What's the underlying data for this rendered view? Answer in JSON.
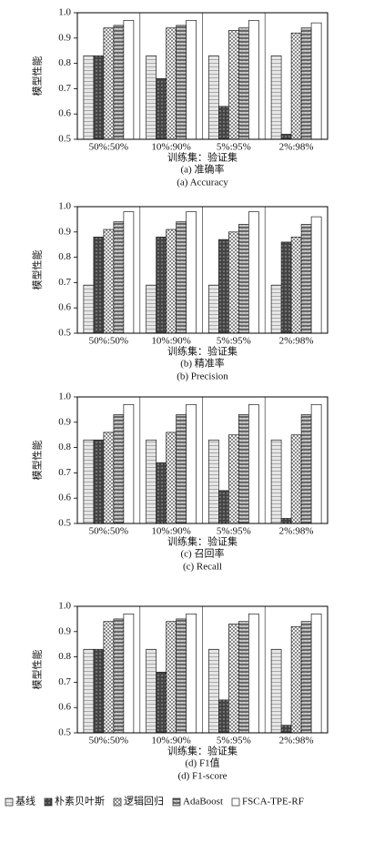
{
  "chart_data": [
    {
      "type": "bar",
      "caption": "(a) 准确率",
      "caption_en": "(a) Accuracy",
      "xlabel": "训练集：验证集",
      "ylabel": "模型性能",
      "categories": [
        "50%:50%",
        "10%:90%",
        "5%:95%",
        "2%:98%"
      ],
      "ylim": [
        0.5,
        1.0
      ],
      "yticks": [
        0.5,
        0.6,
        0.7,
        0.8,
        0.9,
        {
          "value": 1.0,
          "label": "1.0"
        }
      ],
      "series": [
        {
          "name": "基线",
          "color": "#e6e6e6",
          "values": [
            0.83,
            0.83,
            0.83,
            0.83
          ]
        },
        {
          "name": "朴素贝叶斯",
          "color": "#444444",
          "values": [
            0.83,
            0.74,
            0.63,
            0.52
          ]
        },
        {
          "name": "逻辑回归",
          "color": "#f4f4f4",
          "values": [
            0.94,
            0.94,
            0.93,
            0.92
          ]
        },
        {
          "name": "AdaBoost",
          "color": "#d8d8d8",
          "values": [
            0.95,
            0.95,
            0.94,
            0.94
          ]
        },
        {
          "name": "FSCA-TPE-RF",
          "color": "#ffffff",
          "values": [
            0.97,
            0.97,
            0.97,
            0.96
          ]
        }
      ]
    },
    {
      "type": "bar",
      "caption": "(b) 精准率",
      "caption_en": "(b) Precision",
      "xlabel": "训练集：验证集",
      "ylabel": "模型性能",
      "categories": [
        "50%:50%",
        "10%:90%",
        "5%:95%",
        "2%:98%"
      ],
      "ylim": [
        0.5,
        1.0
      ],
      "yticks": [
        0.5,
        0.6,
        0.7,
        0.8,
        0.9,
        {
          "value": 1.0,
          "label": "1.0"
        }
      ],
      "series": [
        {
          "name": "基线",
          "color": "#e6e6e6",
          "values": [
            0.69,
            0.69,
            0.69,
            0.69
          ]
        },
        {
          "name": "朴素贝叶斯",
          "color": "#444444",
          "values": [
            0.88,
            0.88,
            0.87,
            0.86
          ]
        },
        {
          "name": "逻辑回归",
          "color": "#f4f4f4",
          "values": [
            0.91,
            0.91,
            0.9,
            0.88
          ]
        },
        {
          "name": "AdaBoost",
          "color": "#d8d8d8",
          "values": [
            0.94,
            0.94,
            0.93,
            0.93
          ]
        },
        {
          "name": "FSCA-TPE-RF",
          "color": "#ffffff",
          "values": [
            0.98,
            0.98,
            0.98,
            0.96
          ]
        }
      ]
    },
    {
      "type": "bar",
      "caption": "(c) 召回率",
      "caption_en": "(c) Recall",
      "xlabel": "训练集：验证集",
      "ylabel": "模型性能",
      "categories": [
        "50%:50%",
        "10%:90%",
        "5%:95%",
        "2%:98%"
      ],
      "ylim": [
        0.5,
        1.0
      ],
      "yticks": [
        0.5,
        0.6,
        0.7,
        0.8,
        0.9,
        {
          "value": 1.0,
          "label": "1.0"
        }
      ],
      "series": [
        {
          "name": "基线",
          "color": "#e6e6e6",
          "values": [
            0.83,
            0.83,
            0.83,
            0.83
          ]
        },
        {
          "name": "朴素贝叶斯",
          "color": "#444444",
          "values": [
            0.83,
            0.74,
            0.63,
            0.52
          ]
        },
        {
          "name": "逻辑回归",
          "color": "#f4f4f4",
          "values": [
            0.86,
            0.86,
            0.85,
            0.85
          ]
        },
        {
          "name": "AdaBoost",
          "color": "#d8d8d8",
          "values": [
            0.93,
            0.93,
            0.93,
            0.93
          ]
        },
        {
          "name": "FSCA-TPE-RF",
          "color": "#ffffff",
          "values": [
            0.97,
            0.97,
            0.97,
            0.97
          ]
        }
      ]
    },
    {
      "type": "bar",
      "caption": "(d) F1值",
      "caption_en": "(d) F1-score",
      "xlabel": "训练集：验证集",
      "ylabel": "模型性能",
      "categories": [
        "50%:50%",
        "10%:90%",
        "5%:95%",
        "2%:98%"
      ],
      "ylim": [
        0.5,
        1.0
      ],
      "yticks": [
        0.5,
        0.6,
        0.7,
        0.8,
        0.9,
        {
          "value": 1.0,
          "label": "1.0"
        }
      ],
      "series": [
        {
          "name": "基线",
          "color": "#e6e6e6",
          "values": [
            0.83,
            0.83,
            0.83,
            0.83
          ]
        },
        {
          "name": "朴素贝叶斯",
          "color": "#444444",
          "values": [
            0.83,
            0.74,
            0.63,
            0.53
          ]
        },
        {
          "name": "逻辑回归",
          "color": "#f4f4f4",
          "values": [
            0.94,
            0.94,
            0.93,
            0.92
          ]
        },
        {
          "name": "AdaBoost",
          "color": "#d8d8d8",
          "values": [
            0.95,
            0.95,
            0.94,
            0.94
          ]
        },
        {
          "name": "FSCA-TPE-RF",
          "color": "#ffffff",
          "values": [
            0.97,
            0.97,
            0.97,
            0.97
          ]
        }
      ]
    }
  ]
}
